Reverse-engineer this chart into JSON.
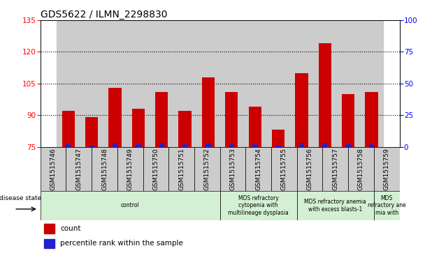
{
  "title": "GDS5622 / ILMN_2298830",
  "samples": [
    "GSM1515746",
    "GSM1515747",
    "GSM1515748",
    "GSM1515749",
    "GSM1515750",
    "GSM1515751",
    "GSM1515752",
    "GSM1515753",
    "GSM1515754",
    "GSM1515755",
    "GSM1515756",
    "GSM1515757",
    "GSM1515758",
    "GSM1515759"
  ],
  "counts": [
    92,
    89,
    103,
    93,
    101,
    92,
    108,
    101,
    94,
    83,
    110,
    124,
    100,
    101
  ],
  "percentiles": [
    2,
    1,
    3,
    2,
    3,
    2,
    3,
    2,
    2,
    1,
    3,
    3,
    2,
    2
  ],
  "ylim_left": [
    75,
    135
  ],
  "ylim_right": [
    0,
    100
  ],
  "yticks_left": [
    75,
    90,
    105,
    120,
    135
  ],
  "yticks_right": [
    0,
    25,
    50,
    75,
    100
  ],
  "bar_color_count": "#cc0000",
  "bar_color_pct": "#2222cc",
  "col_bg_color": "#cccccc",
  "plot_bg_color": "#ffffff",
  "disease_groups": [
    {
      "label": "control",
      "start": 0,
      "end": 7
    },
    {
      "label": "MDS refractory\ncytopenia with\nmultilineage dysplasia",
      "start": 7,
      "end": 10
    },
    {
      "label": "MDS refractory anemia\nwith excess blasts-1",
      "start": 10,
      "end": 13
    },
    {
      "label": "MDS\nrefractory ane\nmia with",
      "start": 13,
      "end": 14
    }
  ],
  "disease_state_label": "disease state",
  "legend_count_label": "count",
  "legend_pct_label": "percentile rank within the sample",
  "bar_width": 0.55,
  "pct_bar_width": 0.22,
  "dotted_gridlines": [
    90,
    105,
    120
  ],
  "title_fontsize": 10,
  "axis_tick_fontsize": 7.5,
  "sample_label_fontsize": 6.5,
  "disease_label_fontsize": 5.5,
  "legend_fontsize": 7.5
}
